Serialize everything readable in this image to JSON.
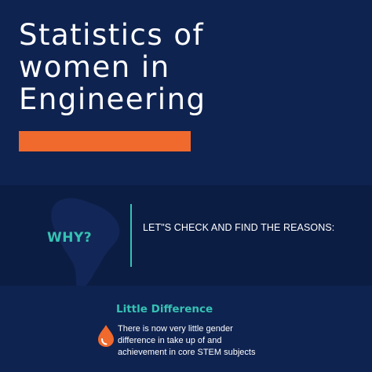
{
  "header": {
    "title_lines": [
      "Statistics of",
      "women in",
      "Engineering"
    ]
  },
  "why": {
    "label": "WHY?",
    "reasons_label": "LET\"S CHECK AND FIND THE REASONS:"
  },
  "little_difference": {
    "heading": "Little Difference",
    "icon": "drop-icon",
    "body_lines": [
      "There is now very little gender",
      "difference in take up of and",
      "achievement in core STEM  subjects"
    ]
  },
  "colors": {
    "background": "#0f2350",
    "band": "#0c1d43",
    "accent": "#f0692d",
    "teal": "#36c2b4"
  }
}
